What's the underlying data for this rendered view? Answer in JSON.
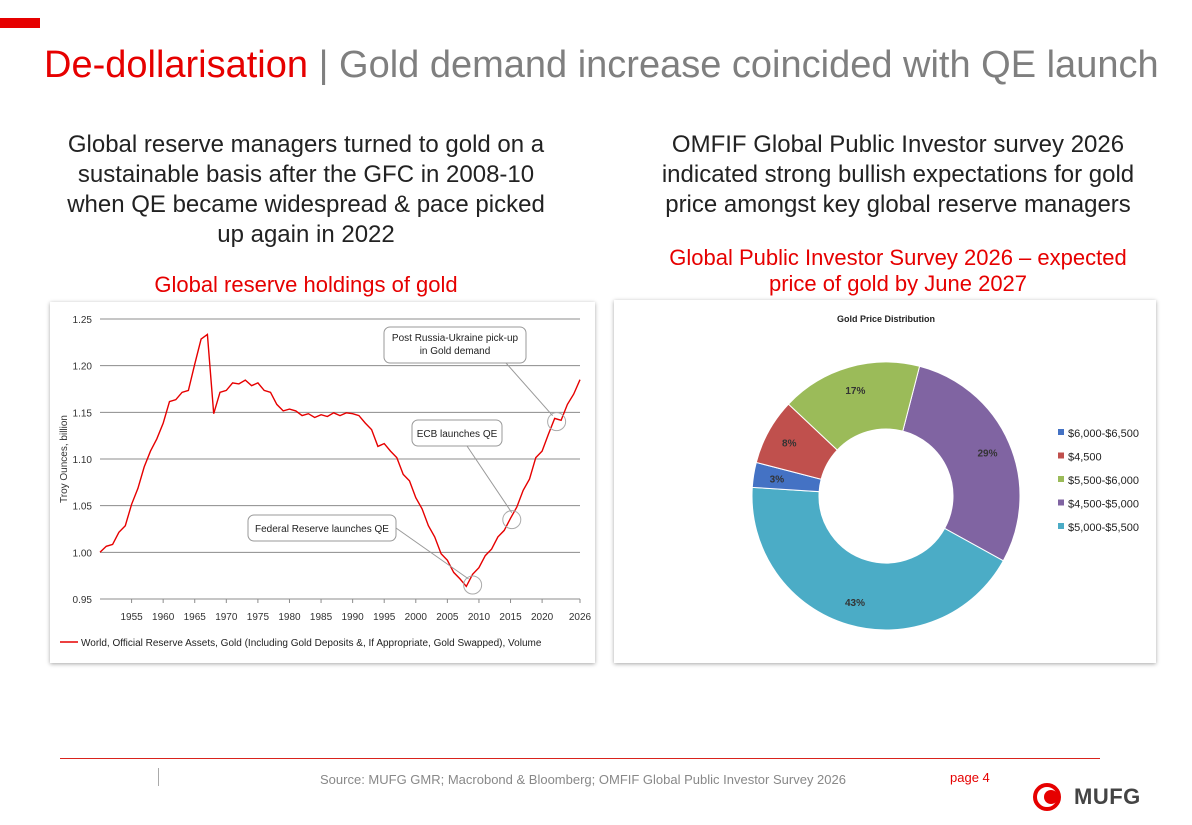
{
  "title": {
    "main": "De-dollarisation",
    "separator": "|",
    "sub": "Gold demand increase coincided with QE launch"
  },
  "left": {
    "heading": "Global reserve managers turned to gold on a sustainable basis after the GFC in 2008-10 when QE became widespread & pace picked up again in 2022",
    "subheading": "Global reserve holdings of gold"
  },
  "right": {
    "heading": "OMFIF Global Public Investor survey 2026 indicated strong bullish expectations for gold price amongst key global reserve managers",
    "subheading": "Global Public Investor Survey 2026 – expected price of gold by June 2027"
  },
  "footer": {
    "source": "Source: MUFG GMR; Macrobond & Bloomberg; OMFIF Global Public Investor Survey 2026",
    "page": "page 4",
    "logo_text": "MUFG"
  },
  "colors": {
    "brand_red": "#e60000",
    "line_red": "#d9231d",
    "title_gray": "#7f7f7f"
  },
  "chart_data": [
    {
      "type": "line",
      "ylabel": "Troy Ounces, billion",
      "ylim": [
        0.95,
        1.25
      ],
      "yticks": [
        "0.95",
        "1.00",
        "1.05",
        "1.10",
        "1.15",
        "1.20",
        "1.25"
      ],
      "xlim": [
        1950,
        2026
      ],
      "xticks": [
        "1955",
        "1960",
        "1965",
        "1970",
        "1975",
        "1980",
        "1985",
        "1990",
        "1995",
        "2000",
        "2005",
        "2010",
        "2015",
        "2020",
        "2026"
      ],
      "grid": true,
      "legend_position": "bottom",
      "series": [
        {
          "name": "World, Official Reserve Assets, Gold (Including Gold Deposits &, If Appropriate, Gold Swapped), Volume",
          "color": "#e60000",
          "x": [
            1950,
            1951,
            1952,
            1953,
            1954,
            1955,
            1956,
            1957,
            1958,
            1959,
            1960,
            1961,
            1962,
            1963,
            1964,
            1965,
            1966,
            1967,
            1968,
            1969,
            1970,
            1971,
            1972,
            1973,
            1974,
            1975,
            1976,
            1977,
            1978,
            1979,
            1980,
            1981,
            1982,
            1983,
            1984,
            1985,
            1986,
            1987,
            1988,
            1989,
            1990,
            1991,
            1992,
            1993,
            1994,
            1995,
            1996,
            1997,
            1998,
            1999,
            2000,
            2001,
            2002,
            2003,
            2004,
            2005,
            2006,
            2007,
            2008,
            2009,
            2010,
            2011,
            2012,
            2013,
            2014,
            2015,
            2016,
            2017,
            2018,
            2019,
            2020,
            2021,
            2022,
            2023,
            2024,
            2025,
            2026
          ],
          "values": [
            1.0,
            1.005,
            1.01,
            1.02,
            1.03,
            1.05,
            1.07,
            1.09,
            1.11,
            1.12,
            1.14,
            1.16,
            1.165,
            1.17,
            1.175,
            1.2,
            1.23,
            1.232,
            1.15,
            1.17,
            1.175,
            1.18,
            1.182,
            1.183,
            1.18,
            1.18,
            1.175,
            1.17,
            1.16,
            1.15,
            1.155,
            1.15,
            1.148,
            1.147,
            1.146,
            1.146,
            1.147,
            1.148,
            1.148,
            1.148,
            1.15,
            1.145,
            1.14,
            1.13,
            1.115,
            1.115,
            1.11,
            1.1,
            1.085,
            1.075,
            1.06,
            1.045,
            1.03,
            1.015,
            1.0,
            0.99,
            0.98,
            0.97,
            0.965,
            0.975,
            0.985,
            0.995,
            1.005,
            1.015,
            1.025,
            1.035,
            1.05,
            1.065,
            1.08,
            1.1,
            1.11,
            1.125,
            1.145,
            1.14,
            1.16,
            1.168,
            1.185
          ]
        }
      ],
      "annotations": [
        {
          "text": "Federal Reserve launches QE",
          "x": 2009,
          "y": 0.965
        },
        {
          "text": "ECB launches QE",
          "x": 2015,
          "y": 1.035
        },
        {
          "text": "Post Russia-Ukraine pick-up in Gold demand",
          "x": 2022,
          "y": 1.14
        }
      ]
    },
    {
      "type": "pie",
      "title": "Gold Price Distribution",
      "donut": true,
      "legend_position": "right",
      "slices": [
        {
          "label": "$6,000-$6,500",
          "value": 3,
          "color": "#4472c4"
        },
        {
          "label": "$4,500",
          "value": 8,
          "color": "#c0504d"
        },
        {
          "label": "$5,500-$6,000",
          "value": 17,
          "color": "#9bbb59"
        },
        {
          "label": "$4,500-$5,000",
          "value": 29,
          "color": "#8064a2"
        },
        {
          "label": "$5,000-$5,500",
          "value": 43,
          "color": "#4bacc6"
        }
      ],
      "order_clockwise": [
        "$4,500-$5,000",
        "$5,000-$5,500",
        "$6,000-$6,500",
        "$4,500",
        "$5,500-$6,000"
      ]
    }
  ]
}
